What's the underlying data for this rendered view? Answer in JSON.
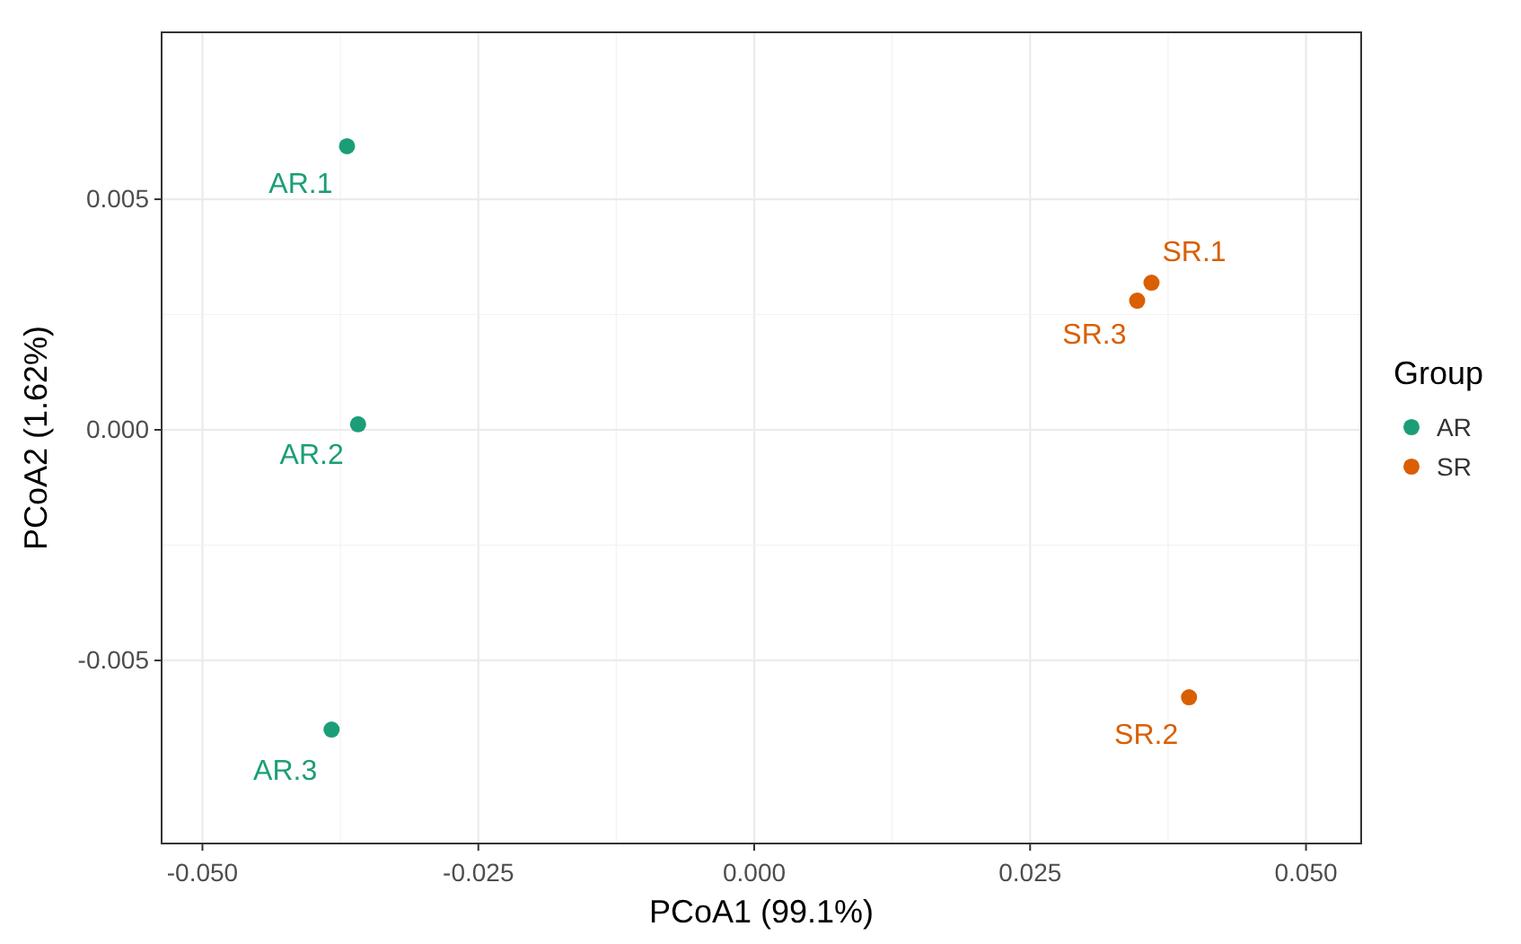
{
  "chart_data": {
    "type": "scatter",
    "xlabel": "PCoA1 (99.1%)",
    "ylabel": "PCoA2 (1.62%)",
    "legend_title": "Group",
    "series": [
      {
        "name": "AR",
        "color": "#1b9e77",
        "x": [
          -0.0369,
          -0.0359,
          -0.0383
        ],
        "values": [
          0.00615,
          0.00012,
          -0.0065
        ]
      },
      {
        "name": "SR",
        "color": "#d95f02",
        "x": [
          0.036,
          0.0394,
          0.0347
        ],
        "values": [
          0.00319,
          -0.0058,
          0.0028
        ]
      }
    ],
    "annotations": [
      {
        "text": "AR.1",
        "x": -0.0369,
        "y": 0.00615
      },
      {
        "text": "AR.2",
        "x": -0.0359,
        "y": 0.00012
      },
      {
        "text": "AR.3",
        "x": -0.0383,
        "y": -0.0065
      },
      {
        "text": "SR.1",
        "x": 0.036,
        "y": 0.00319
      },
      {
        "text": "SR.2",
        "x": 0.0394,
        "y": -0.0058
      },
      {
        "text": "SR.3",
        "x": 0.0347,
        "y": 0.0028
      }
    ],
    "xlim": [
      -0.0537,
      0.055
    ],
    "ylim": [
      -0.00897,
      0.00862
    ],
    "xticks": [
      {
        "value": -0.05,
        "label": "-0.050"
      },
      {
        "value": -0.025,
        "label": "-0.025"
      },
      {
        "value": 0,
        "label": "0.000"
      },
      {
        "value": 0.025,
        "label": "0.025"
      },
      {
        "value": 0.05,
        "label": "0.050"
      }
    ],
    "yticks": [
      {
        "value": -0.005,
        "label": "-0.005"
      },
      {
        "value": 0,
        "label": "0.000"
      },
      {
        "value": 0.005,
        "label": "0.005"
      }
    ],
    "grid": true,
    "legend": "right",
    "marker": "circle"
  }
}
